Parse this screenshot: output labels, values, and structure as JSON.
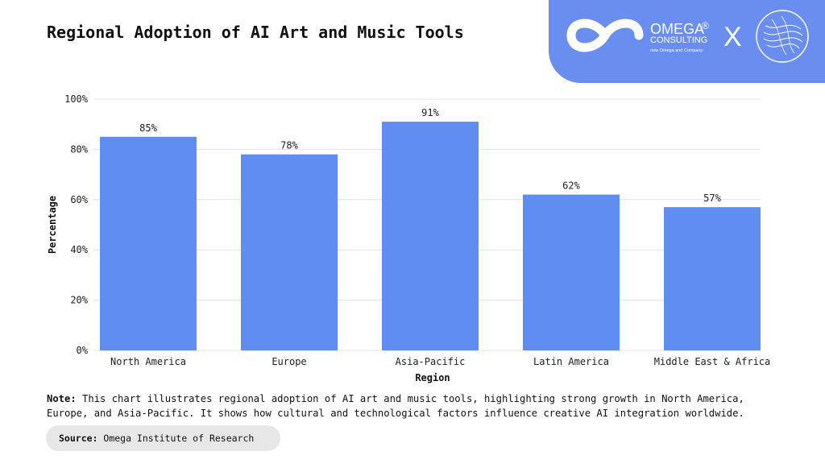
{
  "header": {
    "title": "Regional Adoption of AI Art and Music Tools"
  },
  "branding": {
    "company_name": "OMEGA",
    "registered_mark": "®",
    "company_sub": "CONSULTING",
    "tagline": "now Omega and Company",
    "separator": "X",
    "panel_color": "#6a8ef0"
  },
  "chart_data": {
    "type": "bar",
    "title": "Regional Adoption of AI Art and Music Tools",
    "categories": [
      "North America",
      "Europe",
      "Asia-Pacific",
      "Latin America",
      "Middle East & Africa"
    ],
    "values": [
      85,
      78,
      91,
      62,
      57
    ],
    "value_labels": [
      "85%",
      "78%",
      "91%",
      "62%",
      "57%"
    ],
    "xlabel": "Region",
    "ylabel": "Percentage",
    "ylim": [
      0,
      100
    ],
    "yticks": [
      0,
      20,
      40,
      60,
      80,
      100
    ],
    "ytick_labels": [
      "0%",
      "20%",
      "40%",
      "60%",
      "80%",
      "100%"
    ],
    "grid": true,
    "legend": "none",
    "bar_color": "#5f8df0"
  },
  "footer": {
    "note_label": "Note:",
    "note_text": " This chart illustrates regional adoption of AI art and music tools, highlighting strong growth in North America, Europe, and Asia-Pacific. It shows how cultural and technological factors influence creative AI integration worldwide.",
    "source_label": "Source:",
    "source_text": " Omega Institute of Research"
  }
}
